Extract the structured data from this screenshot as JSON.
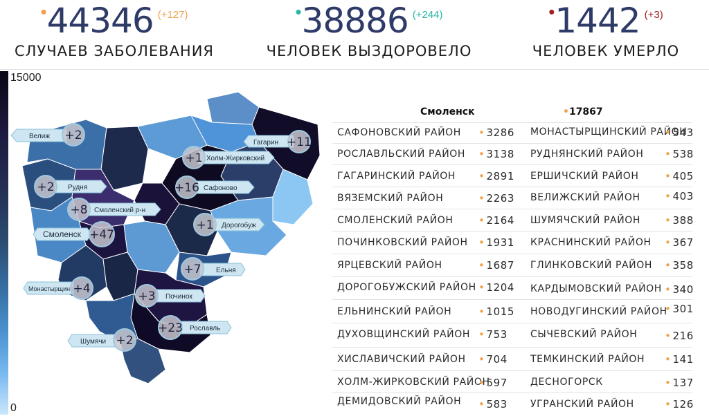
{
  "stats": [
    {
      "value": "44346",
      "delta": "(+127)",
      "label": "Случаев заболевания",
      "dot_color": "#f2a14a",
      "delta_color": "#f2a14a"
    },
    {
      "value": "38886",
      "delta": "(+244)",
      "label": "Человек выздоровело",
      "dot_color": "#27b7a6",
      "delta_color": "#27b7a6"
    },
    {
      "value": "1442",
      "delta": "(+3)",
      "label": "Человек умерло",
      "dot_color": "#a31f1f",
      "delta_color": "#a31f1f"
    }
  ],
  "scale": {
    "max": "15000",
    "min": "0"
  },
  "map": {
    "callouts": [
      {
        "id": "velizh",
        "name": "Велиж",
        "value": "+2"
      },
      {
        "id": "gagarin",
        "name": "Гагарин",
        "value": "+11"
      },
      {
        "id": "holm",
        "name": "Холм-Жирковский",
        "value": "+1"
      },
      {
        "id": "rudnya",
        "name": "Рудня",
        "value": "+2"
      },
      {
        "id": "safonovo",
        "name": "Сафоново",
        "value": "+16"
      },
      {
        "id": "smol-rn",
        "name": "Смоленский р-н",
        "value": "+8"
      },
      {
        "id": "dorogobuzh",
        "name": "Дорогобуж",
        "value": "+1"
      },
      {
        "id": "smolensk",
        "name": "Смоленск",
        "value": "+47"
      },
      {
        "id": "elnya",
        "name": "Ельня",
        "value": "+7"
      },
      {
        "id": "monast",
        "name": "Монастырщина",
        "value": "+4"
      },
      {
        "id": "pochinok",
        "name": "Починок",
        "value": "+3"
      },
      {
        "id": "roslavl",
        "name": "Рославль",
        "value": "+23"
      },
      {
        "id": "shumyachi",
        "name": "Шумячи",
        "value": "+2"
      }
    ]
  },
  "table": {
    "header": {
      "name": "Смоленск",
      "value": "17867"
    },
    "left": [
      {
        "name": "Сафоновский район",
        "value": "3286"
      },
      {
        "name": "Рославльский район",
        "value": "3138"
      },
      {
        "name": "Гагаринский район",
        "value": "2891"
      },
      {
        "name": "Вяземский район",
        "value": "2263"
      },
      {
        "name": "Смоленский район",
        "value": "2164"
      },
      {
        "name": "Починковский район",
        "value": "1931"
      },
      {
        "name": "Ярцевский район",
        "value": "1687"
      },
      {
        "name": "Дорогобужский район",
        "value": "1204"
      },
      {
        "name": "Ельнинский район",
        "value": "1015"
      },
      {
        "name": "Духовщинский район",
        "value": "753"
      },
      {
        "name": "Хиславичский район",
        "value": "704"
      },
      {
        "name": "Холм-Жирковский район",
        "value": "597"
      },
      {
        "name": "Демидовский район",
        "value": "583"
      }
    ],
    "right": [
      {
        "name": "Монастырщинский район",
        "value": "543"
      },
      {
        "name": "Руднянский район",
        "value": "538"
      },
      {
        "name": "Ершичский район",
        "value": "405"
      },
      {
        "name": "Велижский район",
        "value": "403"
      },
      {
        "name": "Шумячский район",
        "value": "388"
      },
      {
        "name": "Краснинский район",
        "value": "367"
      },
      {
        "name": "Глинковский район",
        "value": "358"
      },
      {
        "name": "Кардымовский район",
        "value": "340"
      },
      {
        "name": "Новодугинский район",
        "value": "301"
      },
      {
        "name": "Сычевский район",
        "value": "216"
      },
      {
        "name": "Темкинский район",
        "value": "141"
      },
      {
        "name": "Десногорск",
        "value": "137"
      },
      {
        "name": "Угранский район",
        "value": "126"
      }
    ]
  }
}
